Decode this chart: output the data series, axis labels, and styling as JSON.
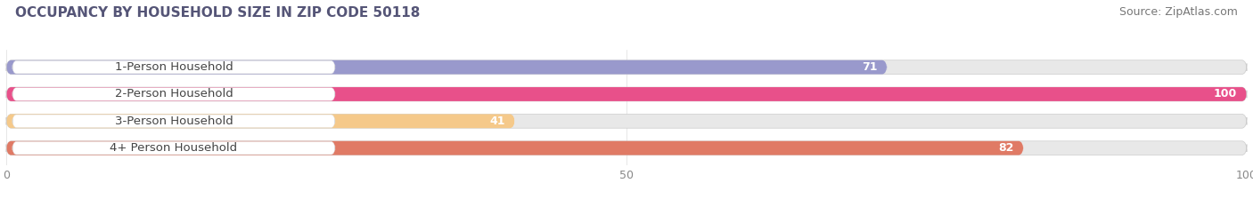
{
  "title": "OCCUPANCY BY HOUSEHOLD SIZE IN ZIP CODE 50118",
  "source": "Source: ZipAtlas.com",
  "categories": [
    "1-Person Household",
    "2-Person Household",
    "3-Person Household",
    "4+ Person Household"
  ],
  "values": [
    71,
    100,
    41,
    82
  ],
  "bar_colors": [
    "#9999cc",
    "#e8508a",
    "#f5c98a",
    "#e07a65"
  ],
  "bar_bg_color": "#e8e8e8",
  "xlim": [
    0,
    100
  ],
  "xticks": [
    0,
    50,
    100
  ],
  "value_color": "#ffffff",
  "label_color": "#444444",
  "label_fontsize": 9.5,
  "value_fontsize": 9,
  "title_fontsize": 11,
  "source_fontsize": 9,
  "bar_height": 0.52,
  "background_color": "#ffffff",
  "title_color": "#555577",
  "source_color": "#777777"
}
